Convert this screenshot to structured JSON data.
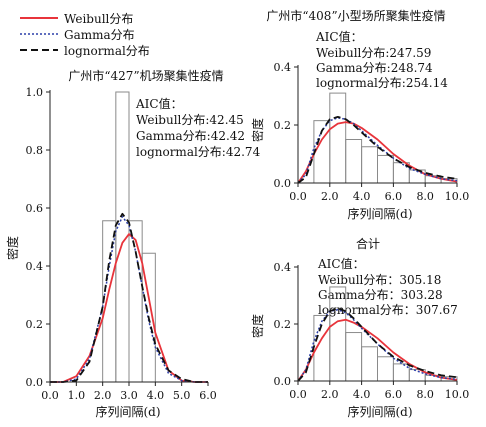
{
  "legend": {
    "items": [
      {
        "label": "Weibull分布",
        "color": "#e8343b",
        "dash": "solid"
      },
      {
        "label": "Gamma分布",
        "color": "#2b3ea8",
        "dash": "dot"
      },
      {
        "label": "lognormal分布",
        "color": "#111111",
        "dash": "dash"
      }
    ]
  },
  "chart_data": [
    {
      "id": "p427",
      "type": "bar",
      "title": "广州市“427”机场聚集性疫情",
      "xlabel": "序列间隔(d)",
      "ylabel": "密度",
      "xlim": [
        0,
        6
      ],
      "ylim": [
        0,
        1.0
      ],
      "xticks": [
        "0.0",
        "1.0",
        "2.0",
        "3.0",
        "4.0",
        "5.0",
        "6.0"
      ],
      "yticks": [
        "0.0",
        "0.2",
        "0.4",
        "0.6",
        "0.8",
        "1.0"
      ],
      "bars": [
        {
          "x0": 2.0,
          "x1": 2.5,
          "value": 0.556
        },
        {
          "x0": 2.5,
          "x1": 3.0,
          "value": 1.0
        },
        {
          "x0": 3.0,
          "x1": 3.5,
          "value": 0.556
        },
        {
          "x0": 3.5,
          "x1": 4.0,
          "value": 0.444
        }
      ],
      "aic_title": "AIC值：",
      "aic_lines": [
        "Weibull分布:42.45",
        "Gamma分布:42.42",
        "lognormal分布:42.74"
      ],
      "curves": {
        "x": [
          0,
          0.5,
          1.0,
          1.5,
          2.0,
          2.25,
          2.5,
          2.75,
          3.0,
          3.25,
          3.5,
          3.75,
          4.0,
          4.5,
          5.0,
          5.5,
          6.0
        ],
        "weibull": [
          0,
          0.0,
          0.02,
          0.09,
          0.22,
          0.32,
          0.41,
          0.48,
          0.51,
          0.49,
          0.41,
          0.29,
          0.17,
          0.04,
          0.005,
          0,
          0
        ],
        "gamma": [
          0,
          0.0,
          0.01,
          0.08,
          0.26,
          0.4,
          0.52,
          0.57,
          0.54,
          0.45,
          0.33,
          0.21,
          0.12,
          0.03,
          0.005,
          0,
          0
        ],
        "lognormal": [
          0,
          0.0,
          0.005,
          0.07,
          0.26,
          0.42,
          0.54,
          0.58,
          0.55,
          0.45,
          0.33,
          0.22,
          0.13,
          0.04,
          0.01,
          0,
          0
        ]
      }
    },
    {
      "id": "p408",
      "type": "bar",
      "title": "广州市“408”小型场所聚集性疫情",
      "xlabel": "序列间隔(d)",
      "ylabel": "密度",
      "xlim": [
        0,
        10
      ],
      "ylim": [
        0,
        0.4
      ],
      "xticks": [
        "0.0",
        "2.0",
        "4.0",
        "6.0",
        "8.0",
        "10.0"
      ],
      "yticks": [
        "0.0",
        "0.2",
        "0.4"
      ],
      "bars": [
        {
          "x0": 1,
          "x1": 2,
          "value": 0.215
        },
        {
          "x0": 2,
          "x1": 3,
          "value": 0.31
        },
        {
          "x0": 3,
          "x1": 4,
          "value": 0.15
        },
        {
          "x0": 4,
          "x1": 5,
          "value": 0.125
        },
        {
          "x0": 5,
          "x1": 6,
          "value": 0.095
        },
        {
          "x0": 6,
          "x1": 7,
          "value": 0.07
        },
        {
          "x0": 7,
          "x1": 8,
          "value": 0.045
        },
        {
          "x0": 8,
          "x1": 9,
          "value": 0.025
        },
        {
          "x0": 9,
          "x1": 10,
          "value": 0.015
        }
      ],
      "aic_title": "AIC值：",
      "aic_lines": [
        "Weibull分布:247.59",
        "Gamma分布:248.74",
        "lognormal分布:254.14"
      ],
      "curves": {
        "x": [
          0,
          0.5,
          1,
          1.5,
          2,
          2.5,
          3,
          3.5,
          4,
          5,
          6,
          7,
          8,
          9,
          10
        ],
        "weibull": [
          0,
          0.04,
          0.1,
          0.15,
          0.185,
          0.205,
          0.21,
          0.205,
          0.19,
          0.15,
          0.1,
          0.06,
          0.03,
          0.015,
          0.005
        ],
        "gamma": [
          0,
          0.03,
          0.12,
          0.18,
          0.215,
          0.225,
          0.22,
          0.205,
          0.18,
          0.13,
          0.085,
          0.05,
          0.03,
          0.015,
          0.008
        ],
        "lognormal": [
          0,
          0.02,
          0.1,
          0.18,
          0.22,
          0.228,
          0.22,
          0.2,
          0.175,
          0.125,
          0.085,
          0.055,
          0.035,
          0.022,
          0.014
        ]
      }
    },
    {
      "id": "total",
      "type": "bar",
      "title": "合计",
      "xlabel": "序列间隔(d)",
      "ylabel": "密度",
      "xlim": [
        0,
        10
      ],
      "ylim": [
        0,
        0.4
      ],
      "xticks": [
        "0.0",
        "2.0",
        "4.0",
        "6.0",
        "8.0",
        "10.0"
      ],
      "yticks": [
        "0.0",
        "0.2",
        "0.4"
      ],
      "bars": [
        {
          "x0": 1,
          "x1": 2,
          "value": 0.23
        },
        {
          "x0": 2,
          "x1": 3,
          "value": 0.33
        },
        {
          "x0": 3,
          "x1": 4,
          "value": 0.17
        },
        {
          "x0": 4,
          "x1": 5,
          "value": 0.12
        },
        {
          "x0": 5,
          "x1": 6,
          "value": 0.085
        },
        {
          "x0": 6,
          "x1": 7,
          "value": 0.06
        },
        {
          "x0": 7,
          "x1": 8,
          "value": 0.04
        },
        {
          "x0": 8,
          "x1": 9,
          "value": 0.02
        },
        {
          "x0": 9,
          "x1": 10,
          "value": 0.015
        }
      ],
      "aic_title": "AIC值：",
      "aic_lines": [
        "Weibull分布：305.18",
        "Gamma分布：303.28",
        "lognormal分布：307.67"
      ],
      "curves": {
        "x": [
          0,
          0.5,
          1,
          1.5,
          2,
          2.5,
          3,
          3.5,
          4,
          5,
          6,
          7,
          8,
          9,
          10
        ],
        "weibull": [
          0,
          0.04,
          0.1,
          0.15,
          0.19,
          0.21,
          0.215,
          0.205,
          0.19,
          0.15,
          0.1,
          0.06,
          0.03,
          0.012,
          0.004
        ],
        "gamma": [
          0,
          0.04,
          0.14,
          0.21,
          0.245,
          0.25,
          0.24,
          0.215,
          0.185,
          0.13,
          0.08,
          0.045,
          0.025,
          0.012,
          0.006
        ],
        "lognormal": [
          0,
          0.03,
          0.12,
          0.2,
          0.245,
          0.255,
          0.245,
          0.22,
          0.19,
          0.13,
          0.085,
          0.055,
          0.035,
          0.02,
          0.013
        ]
      }
    }
  ]
}
